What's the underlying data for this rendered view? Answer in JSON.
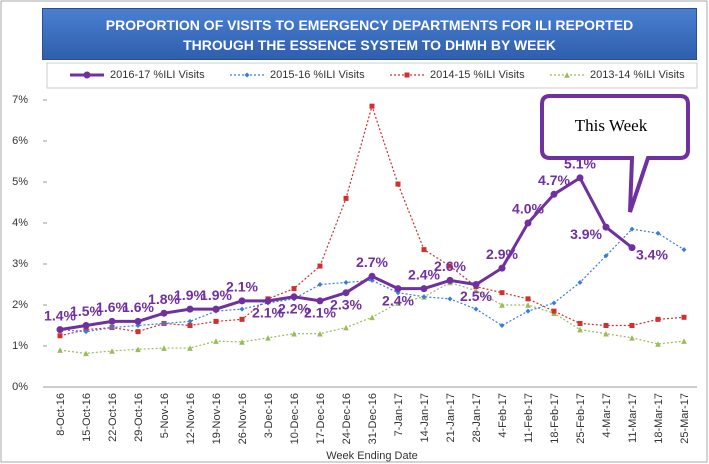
{
  "chart_data": {
    "type": "line",
    "title": "PROPORTION OF VISITS TO EMERGENCY DEPARTMENTS FOR ILI REPORTED THROUGH THE ESSENCE SYSTEM TO DHMH BY WEEK",
    "x_label": "Week Ending Date",
    "annotation": "This Week",
    "categories": [
      "8-Oct-16",
      "15-Oct-16",
      "22-Oct-16",
      "29-Oct-16",
      "5-Nov-16",
      "12-Nov-16",
      "19-Nov-16",
      "26-Nov-16",
      "3-Dec-16",
      "10-Dec-16",
      "17-Dec-16",
      "24-Dec-16",
      "31-Dec-16",
      "7-Jan-17",
      "14-Jan-17",
      "21-Jan-17",
      "28-Jan-17",
      "4-Feb-17",
      "11-Feb-17",
      "18-Feb-17",
      "25-Feb-17",
      "4-Mar-17",
      "11-Mar-17",
      "18-Mar-17",
      "25-Mar-17"
    ],
    "series": [
      {
        "name": "2016-17 %ILI Visits",
        "color": "#7030a0",
        "values": [
          1.4,
          1.5,
          1.6,
          1.6,
          1.8,
          1.9,
          1.9,
          2.1,
          2.1,
          2.2,
          2.1,
          2.3,
          2.7,
          2.4,
          2.4,
          2.6,
          2.5,
          2.9,
          4.0,
          4.7,
          5.1,
          3.9,
          3.4,
          null,
          null
        ],
        "value_labels": [
          "1.4%",
          "1.5%",
          "1.6%",
          "1.6%",
          "1.8%",
          "1.9%",
          "1.9%",
          "2.1%",
          "2.1%",
          "2.2%",
          "2.1%",
          "2.3%",
          "2.7%",
          "2.4%",
          "2.4%",
          "2.6%",
          "2.5%",
          "2.9%",
          "4.0%",
          "4.7%",
          "5.1%",
          "3.9%",
          "3.4%",
          null,
          null
        ]
      },
      {
        "name": "2015-16 %ILI Visits",
        "color": "#3a7dd8",
        "values": [
          1.4,
          1.35,
          1.45,
          1.5,
          1.55,
          1.6,
          1.85,
          1.9,
          2.05,
          2.15,
          2.5,
          2.55,
          2.6,
          2.3,
          2.2,
          2.15,
          1.9,
          1.5,
          1.85,
          2.05,
          2.55,
          3.2,
          3.85,
          3.75,
          3.35
        ]
      },
      {
        "name": "2014-15 %ILI Visits",
        "color": "#d03030",
        "values": [
          1.25,
          1.4,
          1.45,
          1.35,
          1.55,
          1.5,
          1.6,
          1.65,
          2.15,
          2.4,
          2.95,
          4.6,
          6.85,
          4.95,
          3.35,
          2.95,
          2.45,
          2.3,
          2.15,
          1.85,
          1.55,
          1.5,
          1.5,
          1.65,
          1.7
        ]
      },
      {
        "name": "2013-14 %ILI Visits",
        "color": "#9bbb59",
        "values": [
          0.9,
          0.82,
          0.88,
          0.92,
          0.95,
          0.95,
          1.12,
          1.1,
          1.2,
          1.3,
          1.3,
          1.45,
          1.7,
          2.05,
          2.2,
          2.55,
          2.35,
          2.0,
          2.0,
          1.8,
          1.4,
          1.3,
          1.2,
          1.05,
          1.12
        ]
      }
    ],
    "ylim": [
      0,
      7
    ],
    "yticks": [
      {
        "value": 0,
        "label": "0%"
      },
      {
        "value": 1,
        "label": "1%"
      },
      {
        "value": 2,
        "label": "2%"
      },
      {
        "value": 3,
        "label": "3%"
      },
      {
        "value": 4,
        "label": "4%"
      },
      {
        "value": 5,
        "label": "5%"
      },
      {
        "value": 6,
        "label": "6%"
      },
      {
        "value": 7,
        "label": "7%"
      }
    ],
    "grid": false
  }
}
